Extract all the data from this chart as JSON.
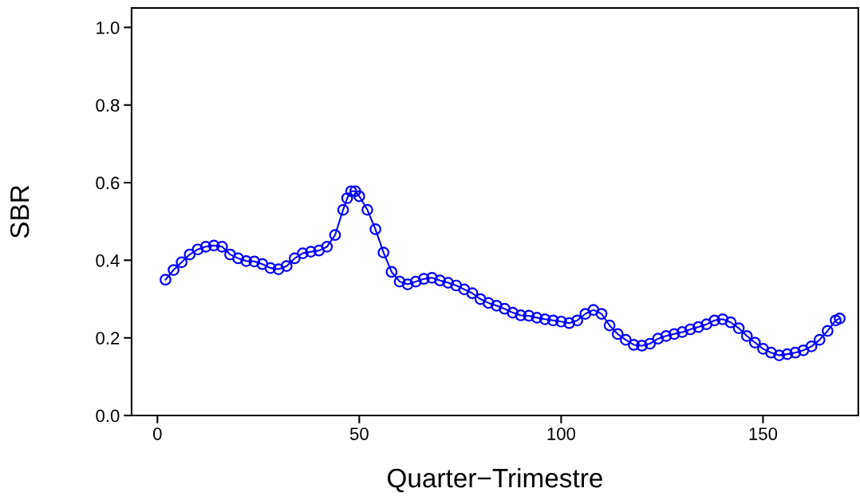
{
  "chart_data": {
    "type": "line",
    "xlabel": "Quarter−Trimestre",
    "ylabel": "SBR",
    "marker": "circle",
    "line_style": "solid",
    "grid": false,
    "legend": false,
    "xlim": [
      -6.4,
      173.6
    ],
    "ylim": [
      0,
      1.05
    ],
    "xticks": [
      0,
      50,
      100,
      150
    ],
    "yticks": [
      {
        "value": 0,
        "label": "0.0"
      },
      {
        "value": 0.2,
        "label": "0.2"
      },
      {
        "value": 0.4,
        "label": "0.4"
      },
      {
        "value": 0.6,
        "label": "0.6"
      },
      {
        "value": 0.8,
        "label": "0.8"
      },
      {
        "value": 1,
        "label": "1.0"
      }
    ],
    "x": [
      2,
      4,
      6,
      8,
      10,
      12,
      14,
      16,
      18,
      20,
      22,
      24,
      26,
      28,
      30,
      32,
      34,
      36,
      38,
      40,
      42,
      44,
      46,
      47,
      48,
      49,
      50,
      52,
      54,
      56,
      58,
      60,
      62,
      64,
      66,
      68,
      70,
      72,
      74,
      76,
      78,
      80,
      82,
      84,
      86,
      88,
      90,
      92,
      94,
      96,
      98,
      100,
      102,
      104,
      106,
      108,
      110,
      112,
      114,
      116,
      118,
      120,
      122,
      124,
      126,
      128,
      130,
      132,
      134,
      136,
      138,
      140,
      142,
      144,
      146,
      148,
      150,
      152,
      154,
      156,
      158,
      160,
      162,
      164,
      166,
      168,
      169
    ],
    "series": [
      {
        "color": "#0000ff",
        "values": [
          0.35,
          0.375,
          0.395,
          0.415,
          0.428,
          0.435,
          0.438,
          0.435,
          0.415,
          0.405,
          0.398,
          0.397,
          0.39,
          0.38,
          0.377,
          0.385,
          0.405,
          0.418,
          0.422,
          0.425,
          0.435,
          0.465,
          0.53,
          0.56,
          0.578,
          0.578,
          0.565,
          0.53,
          0.48,
          0.42,
          0.37,
          0.345,
          0.338,
          0.345,
          0.352,
          0.355,
          0.348,
          0.342,
          0.335,
          0.325,
          0.315,
          0.3,
          0.29,
          0.283,
          0.275,
          0.265,
          0.258,
          0.257,
          0.252,
          0.248,
          0.245,
          0.242,
          0.238,
          0.245,
          0.262,
          0.272,
          0.262,
          0.232,
          0.21,
          0.195,
          0.182,
          0.18,
          0.185,
          0.198,
          0.205,
          0.21,
          0.215,
          0.222,
          0.228,
          0.235,
          0.245,
          0.248,
          0.24,
          0.225,
          0.205,
          0.188,
          0.172,
          0.162,
          0.155,
          0.158,
          0.162,
          0.168,
          0.178,
          0.195,
          0.218,
          0.245,
          0.25
        ]
      }
    ]
  }
}
